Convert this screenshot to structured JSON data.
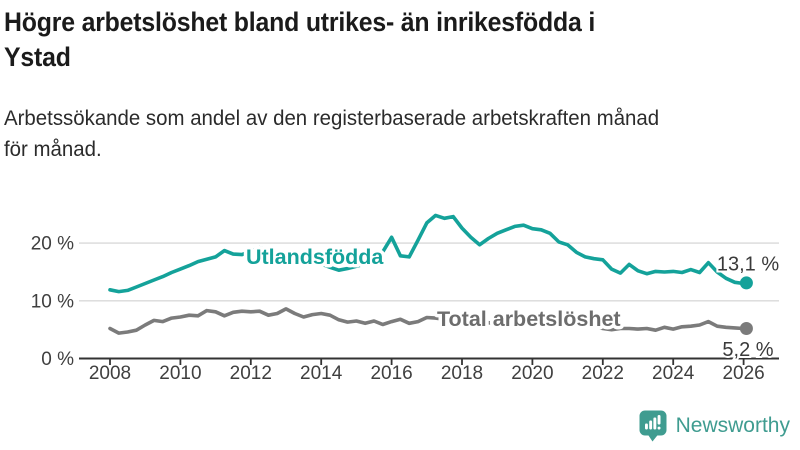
{
  "header": {
    "title_line1": "Högre arbetslöshet bland utrikes- än inrikesfödda i",
    "title_line2": "Ystad",
    "subtitle_line1": "Arbetssökande som andel av den registerbaserade arbetskraften månad",
    "subtitle_line2": "för månad."
  },
  "branding": {
    "logo_text": "Newsworthy",
    "logo_icon": "bar-chart-speech-bubble-icon"
  },
  "colors": {
    "teal": "#14a29a",
    "gray_line": "#7b7b7b",
    "gray_label": "#6d6d6d",
    "value_label": "#3a3a3a",
    "grid": "#d9d9d9",
    "axis": "#333333",
    "tick_text": "#3f3f3f",
    "logo_teal": "#3f9c90"
  },
  "chart_data": {
    "type": "line",
    "title": "Högre arbetslöshet bland utrikes- än inrikesfödda i Ystad",
    "subtitle": "Arbetssökande som andel av den registerbaserade arbetskraften månad för månad.",
    "ylabel": "",
    "xlabel": "",
    "unit": "%",
    "grid": "horizontal",
    "legend_position": "inline-labels",
    "x_start": 2008,
    "x_step": 0.25,
    "x_end": 2026.08,
    "xlim": [
      2007.2,
      2027.2
    ],
    "ylim": [
      0,
      29
    ],
    "x_ticks": [
      2008,
      2010,
      2012,
      2014,
      2016,
      2018,
      2020,
      2022,
      2024,
      2026
    ],
    "y_ticks": [
      {
        "value": 0,
        "label": "0 %"
      },
      {
        "value": 10,
        "label": "10 %"
      },
      {
        "value": 20,
        "label": "20 %"
      }
    ],
    "series": [
      {
        "name": "Total arbetslöshet",
        "color": "#7b7b7b",
        "label_color": "#6d6d6d",
        "end_label": "5,2 %",
        "end_value": 5.2,
        "values": [
          5.2,
          4.4,
          4.6,
          4.9,
          5.8,
          6.6,
          6.4,
          7.0,
          7.2,
          7.5,
          7.4,
          8.3,
          8.1,
          7.4,
          8.0,
          8.2,
          8.1,
          8.2,
          7.5,
          7.8,
          8.6,
          7.8,
          7.2,
          7.6,
          7.8,
          7.5,
          6.7,
          6.3,
          6.5,
          6.1,
          6.5,
          5.9,
          6.4,
          6.8,
          6.1,
          6.4,
          7.1,
          7.0,
          6.8,
          6.6,
          6.4,
          6.2,
          6.0,
          6.2,
          6.0,
          5.9,
          6.1,
          5.9,
          6.8,
          7.3,
          7.0,
          6.6,
          6.3,
          6.0,
          5.8,
          5.6,
          5.2,
          5.0,
          5.2,
          5.2,
          5.1,
          5.2,
          4.9,
          5.4,
          5.1,
          5.5,
          5.6,
          5.8,
          6.4,
          5.6,
          5.4,
          5.3,
          5.2,
          5.2
        ]
      },
      {
        "name": "Utlandsfödda",
        "color": "#14a29a",
        "label_color": "#14a29a",
        "end_label": "13,1 %",
        "end_value": 13.1,
        "values": [
          11.9,
          11.6,
          11.8,
          12.4,
          13.0,
          13.6,
          14.2,
          14.9,
          15.5,
          16.1,
          16.8,
          17.2,
          17.6,
          18.7,
          18.1,
          18.0,
          18.6,
          19.2,
          18.6,
          18.3,
          18.0,
          17.6,
          17.2,
          16.8,
          16.4,
          15.8,
          15.3,
          15.6,
          16.0,
          16.4,
          16.9,
          18.5,
          21.0,
          17.8,
          17.6,
          20.5,
          23.5,
          24.8,
          24.3,
          24.6,
          22.6,
          21.0,
          19.7,
          20.8,
          21.7,
          22.3,
          22.9,
          23.1,
          22.5,
          22.3,
          21.7,
          20.2,
          19.7,
          18.4,
          17.6,
          17.3,
          17.1,
          15.5,
          14.8,
          16.3,
          15.2,
          14.7,
          15.1,
          15.0,
          15.1,
          14.9,
          15.4,
          14.9,
          16.6,
          15.0,
          13.9,
          13.2,
          13.0,
          13.1
        ]
      }
    ]
  }
}
